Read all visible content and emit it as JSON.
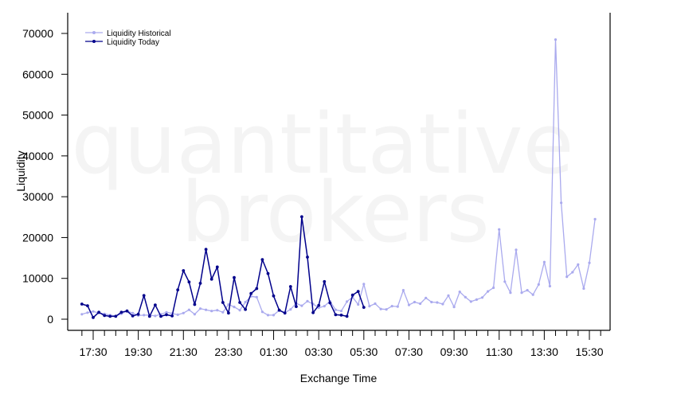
{
  "watermark": {
    "line1": "quantitative",
    "line2": "brokers"
  },
  "chart_data": {
    "type": "line",
    "xlabel": "Exchange Time",
    "ylabel": "Liquidity",
    "x_tick_labels": [
      "17:30",
      "19:30",
      "21:30",
      "23:30",
      "01:30",
      "03:30",
      "05:30",
      "07:30",
      "09:30",
      "11:30",
      "13:30",
      "15:30"
    ],
    "y_ticks": [
      0,
      10000,
      20000,
      30000,
      40000,
      50000,
      60000,
      70000
    ],
    "ylim": [
      -2500,
      75500
    ],
    "interval_minutes": 15,
    "grid": false,
    "legend_position": "top-left",
    "series": [
      {
        "name": "Liquidity Historical",
        "color": "#aaaaee",
        "start": "17:00",
        "values": [
          1200,
          1600,
          1900,
          1500,
          1300,
          1000,
          800,
          1300,
          2000,
          1500,
          900,
          1000,
          1000,
          800,
          1200,
          1700,
          1400,
          1100,
          1500,
          2300,
          1200,
          2600,
          2300,
          2000,
          2200,
          1700,
          3600,
          3000,
          2200,
          4200,
          5600,
          5400,
          1800,
          1000,
          1000,
          2200,
          1600,
          2400,
          3900,
          3300,
          4400,
          3700,
          2800,
          3200,
          4400,
          2300,
          2000,
          4300,
          5400,
          3600,
          8600,
          3200,
          3800,
          2500,
          2400,
          3200,
          3100,
          7100,
          3500,
          4200,
          3800,
          5200,
          4200,
          4100,
          3700,
          5800,
          3000,
          6700,
          5400,
          4300,
          4800,
          5300,
          6800,
          7700,
          22000,
          9200,
          6500,
          17000,
          6500,
          7100,
          6000,
          8500,
          14000,
          8100,
          68500,
          28500,
          10400,
          11500,
          13400,
          7500,
          13800,
          24500
        ]
      },
      {
        "name": "Liquidity Today",
        "color": "#00008b",
        "start": "17:00",
        "values": [
          3700,
          3300,
          400,
          1700,
          900,
          700,
          700,
          1700,
          2000,
          800,
          1200,
          5800,
          700,
          3500,
          700,
          1100,
          800,
          7200,
          11900,
          9100,
          3600,
          8800,
          17100,
          9800,
          12800,
          4100,
          1500,
          10200,
          4100,
          2400,
          6300,
          7500,
          14600,
          11200,
          5700,
          2200,
          1500,
          8000,
          3100,
          25100,
          15200,
          1600,
          3400,
          9200,
          4000,
          1100,
          1000,
          700,
          5900,
          6800,
          2900
        ]
      }
    ]
  }
}
